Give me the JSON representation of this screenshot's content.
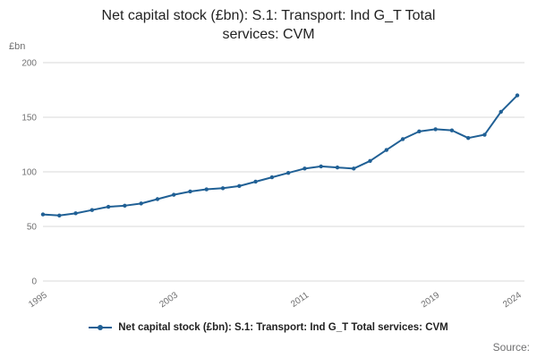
{
  "chart_data": {
    "type": "line",
    "title": "Net capital stock (£bn): S.1: Transport: Ind G_T Total services: CVM",
    "xlabel": "",
    "ylabel": "£bn",
    "x": [
      1995,
      1996,
      1997,
      1998,
      1999,
      2000,
      2001,
      2002,
      2003,
      2004,
      2005,
      2006,
      2007,
      2008,
      2009,
      2010,
      2011,
      2012,
      2013,
      2014,
      2015,
      2016,
      2017,
      2018,
      2019,
      2020,
      2021,
      2022,
      2023,
      2024
    ],
    "series": [
      {
        "name": "Net capital stock (£bn): S.1: Transport: Ind G_T Total services: CVM",
        "values": [
          61,
          60,
          62,
          65,
          68,
          69,
          71,
          75,
          79,
          82,
          84,
          85,
          87,
          91,
          95,
          99,
          103,
          105,
          104,
          103,
          110,
          120,
          130,
          137,
          139,
          138,
          131,
          134,
          155,
          170
        ]
      }
    ],
    "ylim": [
      0,
      200
    ],
    "y_ticks": [
      0,
      50,
      100,
      150,
      200
    ],
    "x_ticks": [
      1995,
      2003,
      2011,
      2019,
      2024
    ],
    "grid": true,
    "legend_position": "bottom"
  },
  "source_label": "Source:",
  "colors": {
    "line": "#206095",
    "grid": "#d9d9d9",
    "axis_text": "#707071",
    "title_text": "#222222"
  }
}
